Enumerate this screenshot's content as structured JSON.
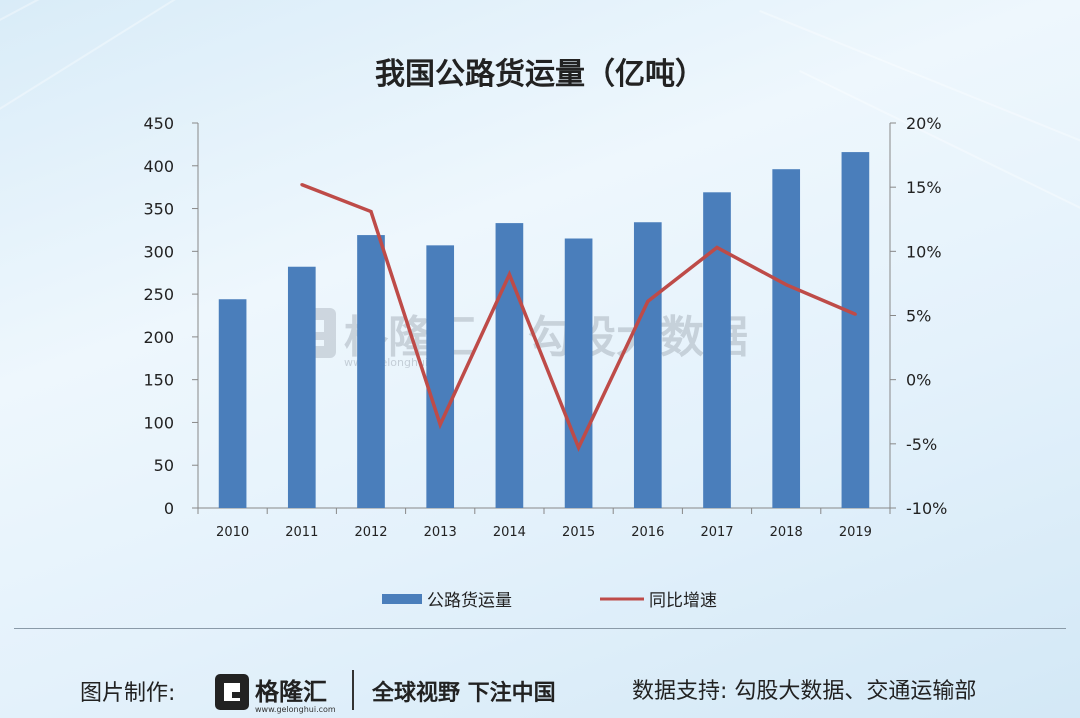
{
  "chart_data": {
    "type": "bar+line",
    "title": "我国公路货运量（亿吨）",
    "categories": [
      "2010",
      "2011",
      "2012",
      "2013",
      "2014",
      "2015",
      "2016",
      "2017",
      "2018",
      "2019"
    ],
    "series": [
      {
        "name": "公路货运量",
        "type": "bar",
        "axis": "left",
        "color": "#4a7ebb",
        "values": [
          244,
          282,
          319,
          307,
          333,
          315,
          334,
          369,
          396,
          416
        ]
      },
      {
        "name": "同比增速",
        "type": "line",
        "axis": "right",
        "color": "#be4b48",
        "values": [
          null,
          15.2,
          13.1,
          -3.5,
          8.2,
          -5.3,
          6.1,
          10.3,
          7.4,
          5.1
        ]
      }
    ],
    "y_left": {
      "min": 0,
      "max": 450,
      "step": 50,
      "ticks": [
        "0",
        "50",
        "100",
        "150",
        "200",
        "250",
        "300",
        "350",
        "400",
        "450"
      ]
    },
    "y_right": {
      "min": -10,
      "max": 20,
      "step": 5,
      "ticks": [
        "-10%",
        "-5%",
        "0%",
        "5%",
        "10%",
        "15%",
        "20%"
      ]
    },
    "legend": {
      "position": "bottom"
    },
    "grid": false
  },
  "watermark": {
    "brand": "格隆汇",
    "url": "www.gelonghui.com",
    "text": "勾股大数据"
  },
  "footer": {
    "label": "图片制作:",
    "logo_text": "格隆汇",
    "logo_url": "www.gelonghui.com",
    "slogan": "全球视野 下注中国",
    "source": "数据支持: 勾股大数据、交通运输部"
  }
}
